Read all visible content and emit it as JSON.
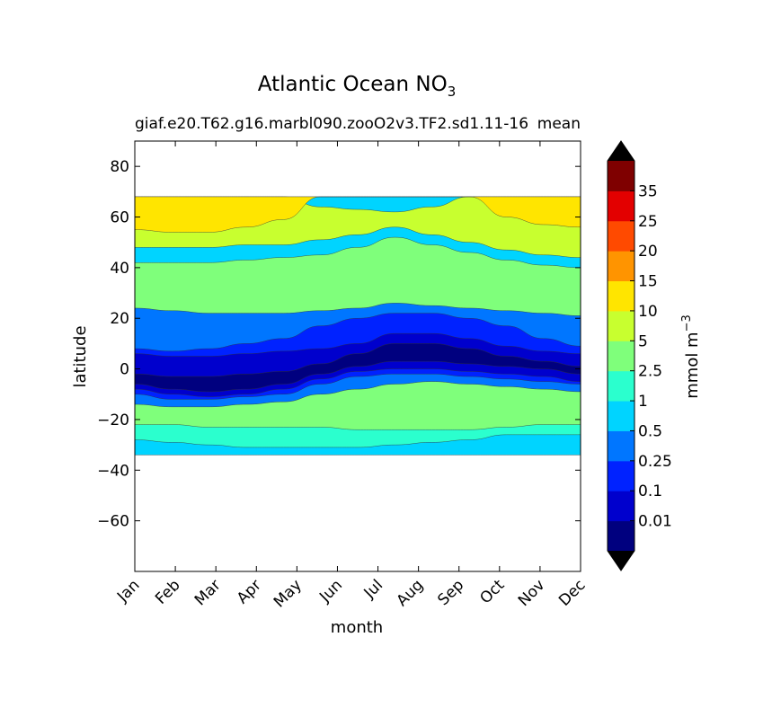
{
  "chart_data": {
    "type": "heatmap",
    "title": "Atlantic Ocean NO",
    "title_subscript": "3",
    "subtitle_left": "giaf.e20.T62.g16.marbl090.zooO2v3.TF2.sd1.11-16",
    "subtitle_right": "mean",
    "xlabel": "month",
    "ylabel": "latitude",
    "x_categories": [
      "Jan",
      "Feb",
      "Mar",
      "Apr",
      "May",
      "Jun",
      "Jul",
      "Aug",
      "Sep",
      "Oct",
      "Nov",
      "Dec"
    ],
    "ylim": [
      -80,
      90
    ],
    "yticks": [
      80,
      60,
      40,
      20,
      0,
      -20,
      -40,
      -60
    ],
    "ytick_labels": [
      "80",
      "60",
      "40",
      "20",
      "0",
      "−20",
      "−40",
      "−60"
    ],
    "data_extent_lat": [
      -34,
      68
    ],
    "colorbar": {
      "label": "mmol m",
      "label_superscript": "−3",
      "levels": [
        0.01,
        0.1,
        0.25,
        0.5,
        1,
        2.5,
        5,
        10,
        15,
        20,
        25,
        35
      ],
      "tick_labels": [
        "0.01",
        "0.1",
        "0.25",
        "0.5",
        "1",
        "2.5",
        "5",
        "10",
        "15",
        "20",
        "25",
        "35"
      ],
      "colors": [
        "#00007f",
        "#0000cd",
        "#0022ff",
        "#0076ff",
        "#00d4ff",
        "#2bffce",
        "#7fff7b",
        "#c8ff2f",
        "#ffe500",
        "#ff9400",
        "#ff4a00",
        "#e30000",
        "#7f0000"
      ],
      "extend_colors": {
        "under": "#000000",
        "over": "#000000"
      }
    },
    "contour_bands": [
      {
        "name": "band-0.5-1",
        "level_index": 4,
        "lat_by_month": [
          -34,
          -34,
          -34,
          -34,
          -34,
          -34,
          -34,
          -34,
          -34,
          -34,
          -34,
          -34,
          -34
        ],
        "lat_top": [
          68,
          68,
          68,
          68,
          68,
          68,
          68,
          68,
          68,
          68,
          68,
          68,
          68
        ]
      },
      {
        "name": "band-1-2.5",
        "level_index": 5,
        "lat_by_month": [
          -28,
          -29,
          -30,
          -31,
          -31,
          -31,
          -31,
          -30,
          -29,
          -28,
          -26,
          -26,
          -26
        ],
        "lat_top": [
          37,
          37,
          37,
          38,
          39,
          40,
          43,
          47,
          44,
          42,
          38,
          36,
          35
        ]
      },
      {
        "name": "band-2.5-5",
        "level_index": 6,
        "lat_by_month": [
          -22,
          -22,
          -23,
          -23,
          -23,
          -23,
          -24,
          -24,
          -24,
          -24,
          -23,
          -22,
          -22
        ],
        "lat_top": [
          42,
          42,
          42,
          43,
          44,
          45,
          48,
          52,
          49,
          46,
          43,
          41,
          40
        ]
      },
      {
        "name": "band-5-10",
        "level_index": 7,
        "lat_by_month": [
          48,
          48,
          48,
          49,
          49,
          51,
          53,
          56,
          53,
          50,
          47,
          45,
          44
        ],
        "lat_top": [
          68,
          68,
          68,
          68,
          68,
          64,
          63,
          62,
          64,
          68,
          68,
          68,
          68
        ]
      },
      {
        "name": "band-10-15",
        "level_index": 8,
        "lat_by_month": [
          55,
          54,
          54,
          56,
          59,
          68,
          68,
          68,
          68,
          68,
          60,
          57,
          56
        ],
        "lat_top": [
          68,
          68,
          68,
          68,
          68,
          68,
          68,
          68,
          68,
          68,
          68,
          68,
          68
        ]
      }
    ],
    "low_regions": [
      {
        "name": "equatorial-0.25",
        "level_index": 3,
        "lat_bottom": [
          -14,
          -15,
          -15,
          -14,
          -13,
          -10,
          -8,
          -6,
          -5,
          -6,
          -7,
          -8,
          -9
        ],
        "lat_top": [
          24,
          23,
          22,
          22,
          22,
          23,
          24,
          26,
          25,
          24,
          23,
          22,
          21
        ]
      },
      {
        "name": "equatorial-0.1",
        "level_index": 2,
        "lat_bottom": [
          -10,
          -12,
          -12,
          -11,
          -10,
          -6,
          -3,
          -2,
          -2,
          -3,
          -4,
          -5,
          -6
        ],
        "lat_top": [
          8,
          7,
          8,
          10,
          12,
          17,
          20,
          22,
          22,
          20,
          17,
          12,
          9
        ]
      },
      {
        "name": "equatorial-0.01",
        "level_index": 1,
        "lat_bottom": [
          -8,
          -10,
          -11,
          -10,
          -8,
          -4,
          -1,
          0,
          0,
          -1,
          -2,
          -3,
          -5
        ],
        "lat_top": [
          6,
          5,
          5,
          6,
          7,
          8,
          10,
          14,
          14,
          12,
          9,
          7,
          6
        ]
      },
      {
        "name": "deep-minimum",
        "level_index": 0,
        "lat_bottom": [
          -6,
          -8,
          -9,
          -8,
          -6,
          -2,
          1,
          3,
          3,
          2,
          1,
          0,
          -2
        ],
        "lat_top": [
          -2,
          -3,
          -3,
          -2,
          -1,
          2,
          6,
          10,
          10,
          8,
          5,
          3,
          1
        ]
      }
    ]
  }
}
